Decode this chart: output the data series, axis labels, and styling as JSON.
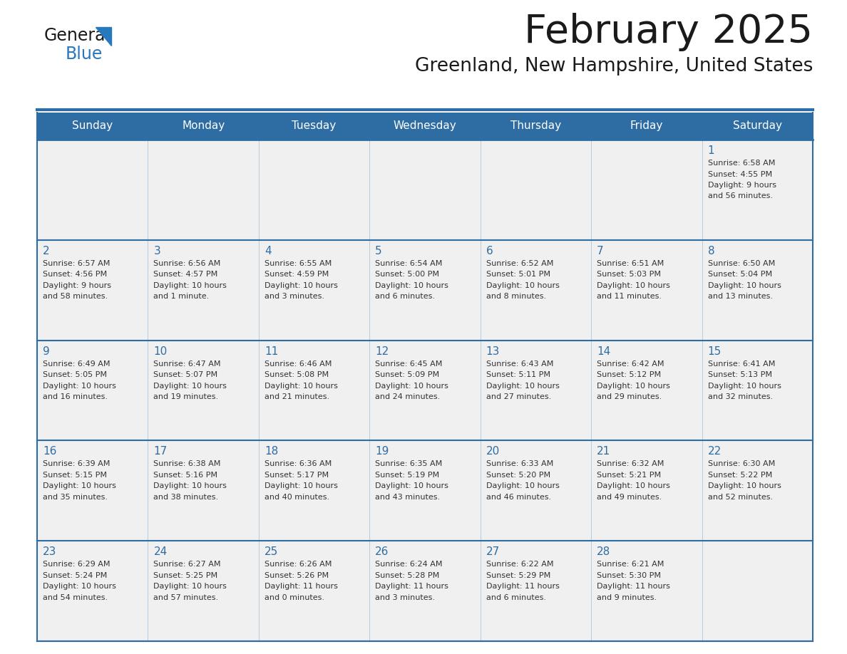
{
  "title": "February 2025",
  "subtitle": "Greenland, New Hampshire, United States",
  "header_bg_color": "#2E6DA4",
  "header_text_color": "#FFFFFF",
  "cell_bg_color": "#F0F0F0",
  "empty_cell_bg": "#F0F0F0",
  "border_color": "#2E6DA4",
  "day_headers": [
    "Sunday",
    "Monday",
    "Tuesday",
    "Wednesday",
    "Thursday",
    "Friday",
    "Saturday"
  ],
  "title_color": "#1a1a1a",
  "subtitle_color": "#1a1a1a",
  "day_num_color": "#2E6DA4",
  "info_color": "#333333",
  "logo_general_color": "#1a1a1a",
  "logo_blue_color": "#2878BE",
  "weeks": [
    [
      null,
      null,
      null,
      null,
      null,
      null,
      {
        "day": 1,
        "sunrise": "6:58 AM",
        "sunset": "4:55 PM",
        "daylight": "9 hours and 56 minutes."
      }
    ],
    [
      {
        "day": 2,
        "sunrise": "6:57 AM",
        "sunset": "4:56 PM",
        "daylight": "9 hours and 58 minutes."
      },
      {
        "day": 3,
        "sunrise": "6:56 AM",
        "sunset": "4:57 PM",
        "daylight": "10 hours and 1 minute."
      },
      {
        "day": 4,
        "sunrise": "6:55 AM",
        "sunset": "4:59 PM",
        "daylight": "10 hours and 3 minutes."
      },
      {
        "day": 5,
        "sunrise": "6:54 AM",
        "sunset": "5:00 PM",
        "daylight": "10 hours and 6 minutes."
      },
      {
        "day": 6,
        "sunrise": "6:52 AM",
        "sunset": "5:01 PM",
        "daylight": "10 hours and 8 minutes."
      },
      {
        "day": 7,
        "sunrise": "6:51 AM",
        "sunset": "5:03 PM",
        "daylight": "10 hours and 11 minutes."
      },
      {
        "day": 8,
        "sunrise": "6:50 AM",
        "sunset": "5:04 PM",
        "daylight": "10 hours and 13 minutes."
      }
    ],
    [
      {
        "day": 9,
        "sunrise": "6:49 AM",
        "sunset": "5:05 PM",
        "daylight": "10 hours and 16 minutes."
      },
      {
        "day": 10,
        "sunrise": "6:47 AM",
        "sunset": "5:07 PM",
        "daylight": "10 hours and 19 minutes."
      },
      {
        "day": 11,
        "sunrise": "6:46 AM",
        "sunset": "5:08 PM",
        "daylight": "10 hours and 21 minutes."
      },
      {
        "day": 12,
        "sunrise": "6:45 AM",
        "sunset": "5:09 PM",
        "daylight": "10 hours and 24 minutes."
      },
      {
        "day": 13,
        "sunrise": "6:43 AM",
        "sunset": "5:11 PM",
        "daylight": "10 hours and 27 minutes."
      },
      {
        "day": 14,
        "sunrise": "6:42 AM",
        "sunset": "5:12 PM",
        "daylight": "10 hours and 29 minutes."
      },
      {
        "day": 15,
        "sunrise": "6:41 AM",
        "sunset": "5:13 PM",
        "daylight": "10 hours and 32 minutes."
      }
    ],
    [
      {
        "day": 16,
        "sunrise": "6:39 AM",
        "sunset": "5:15 PM",
        "daylight": "10 hours and 35 minutes."
      },
      {
        "day": 17,
        "sunrise": "6:38 AM",
        "sunset": "5:16 PM",
        "daylight": "10 hours and 38 minutes."
      },
      {
        "day": 18,
        "sunrise": "6:36 AM",
        "sunset": "5:17 PM",
        "daylight": "10 hours and 40 minutes."
      },
      {
        "day": 19,
        "sunrise": "6:35 AM",
        "sunset": "5:19 PM",
        "daylight": "10 hours and 43 minutes."
      },
      {
        "day": 20,
        "sunrise": "6:33 AM",
        "sunset": "5:20 PM",
        "daylight": "10 hours and 46 minutes."
      },
      {
        "day": 21,
        "sunrise": "6:32 AM",
        "sunset": "5:21 PM",
        "daylight": "10 hours and 49 minutes."
      },
      {
        "day": 22,
        "sunrise": "6:30 AM",
        "sunset": "5:22 PM",
        "daylight": "10 hours and 52 minutes."
      }
    ],
    [
      {
        "day": 23,
        "sunrise": "6:29 AM",
        "sunset": "5:24 PM",
        "daylight": "10 hours and 54 minutes."
      },
      {
        "day": 24,
        "sunrise": "6:27 AM",
        "sunset": "5:25 PM",
        "daylight": "10 hours and 57 minutes."
      },
      {
        "day": 25,
        "sunrise": "6:26 AM",
        "sunset": "5:26 PM",
        "daylight": "11 hours and 0 minutes."
      },
      {
        "day": 26,
        "sunrise": "6:24 AM",
        "sunset": "5:28 PM",
        "daylight": "11 hours and 3 minutes."
      },
      {
        "day": 27,
        "sunrise": "6:22 AM",
        "sunset": "5:29 PM",
        "daylight": "11 hours and 6 minutes."
      },
      {
        "day": 28,
        "sunrise": "6:21 AM",
        "sunset": "5:30 PM",
        "daylight": "11 hours and 9 minutes."
      },
      null
    ]
  ]
}
